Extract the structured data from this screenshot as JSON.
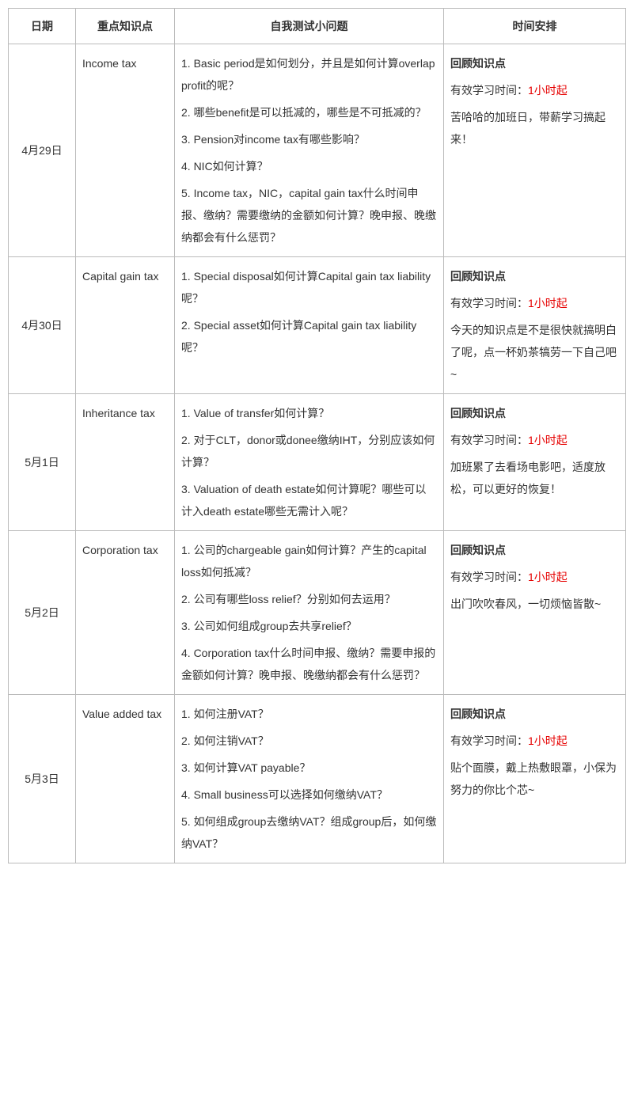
{
  "columns": [
    "日期",
    "重点知识点",
    "自我测试小问题",
    "时间安排"
  ],
  "col_widths": [
    "85px",
    "125px",
    "340px",
    "230px"
  ],
  "border_color": "#bbbbbb",
  "text_color": "#333333",
  "highlight_color": "#e60000",
  "font_size": 14,
  "rows": [
    {
      "date": "4月29日",
      "topic": "Income tax",
      "questions": [
        "1. Basic period是如何划分，并且是如何计算overlap profit的呢？",
        "2. 哪些benefit是可以抵减的，哪些是不可抵减的？",
        "3. Pension对income tax有哪些影响？",
        "4. NIC如何计算？",
        "5. Income tax，NIC，capital gain tax什么时间申报、缴纳？需要缴纳的金额如何计算？晚申报、晚缴纳都会有什么惩罚？"
      ],
      "schedule": {
        "title": "回顾知识点",
        "study_prefix": "有效学习时间：",
        "study_highlight": "1小时起",
        "notes": [
          "苦哈哈的加班日，带薪学习搞起来！"
        ]
      }
    },
    {
      "date": "4月30日",
      "topic": "Capital gain tax",
      "questions": [
        "1. Special disposal如何计算Capital gain tax liability呢？",
        "2. Special asset如何计算Capital gain tax liability呢？"
      ],
      "schedule": {
        "title": "回顾知识点",
        "study_prefix": "有效学习时间：",
        "study_highlight": "1小时起",
        "notes": [
          "今天的知识点是不是很快就搞明白了呢，点一杯奶茶犒劳一下自己吧~"
        ]
      }
    },
    {
      "date": "5月1日",
      "topic": "Inheritance tax",
      "questions": [
        "1. Value of transfer如何计算？",
        "2. 对于CLT，donor或donee缴纳IHT，分别应该如何计算？",
        "3. Valuation of death estate如何计算呢？哪些可以计入death estate哪些无需计入呢？"
      ],
      "schedule": {
        "title": "回顾知识点",
        "study_prefix": "有效学习时间：",
        "study_highlight": "1小时起",
        "notes": [
          "加班累了去看场电影吧，适度放松，可以更好的恢复！"
        ]
      }
    },
    {
      "date": "5月2日",
      "topic": "Corporation tax",
      "questions": [
        "1. 公司的chargeable gain如何计算？产生的capital loss如何抵减？",
        "2. 公司有哪些loss relief？分别如何去运用？",
        "3. 公司如何组成group去共享relief？",
        "4. Corporation tax什么时间申报、缴纳？需要申报的金额如何计算？晚申报、晚缴纳都会有什么惩罚？"
      ],
      "schedule": {
        "title": "回顾知识点",
        "study_prefix": "有效学习时间：",
        "study_highlight": "1小时起",
        "notes": [
          "出门吹吹春风，一切烦恼皆散~"
        ]
      }
    },
    {
      "date": "5月3日",
      "topic": "Value added tax",
      "questions": [
        "1. 如何注册VAT？",
        "2. 如何注销VAT？",
        "3. 如何计算VAT payable？",
        "4. Small business可以选择如何缴纳VAT？",
        "5. 如何组成group去缴纳VAT？组成group后，如何缴纳VAT？"
      ],
      "schedule": {
        "title": "回顾知识点",
        "study_prefix": "有效学习时间：",
        "study_highlight": "1小时起",
        "notes": [
          "贴个面膜，戴上热敷眼罩，小保为努力的你比个芯~"
        ]
      }
    }
  ]
}
